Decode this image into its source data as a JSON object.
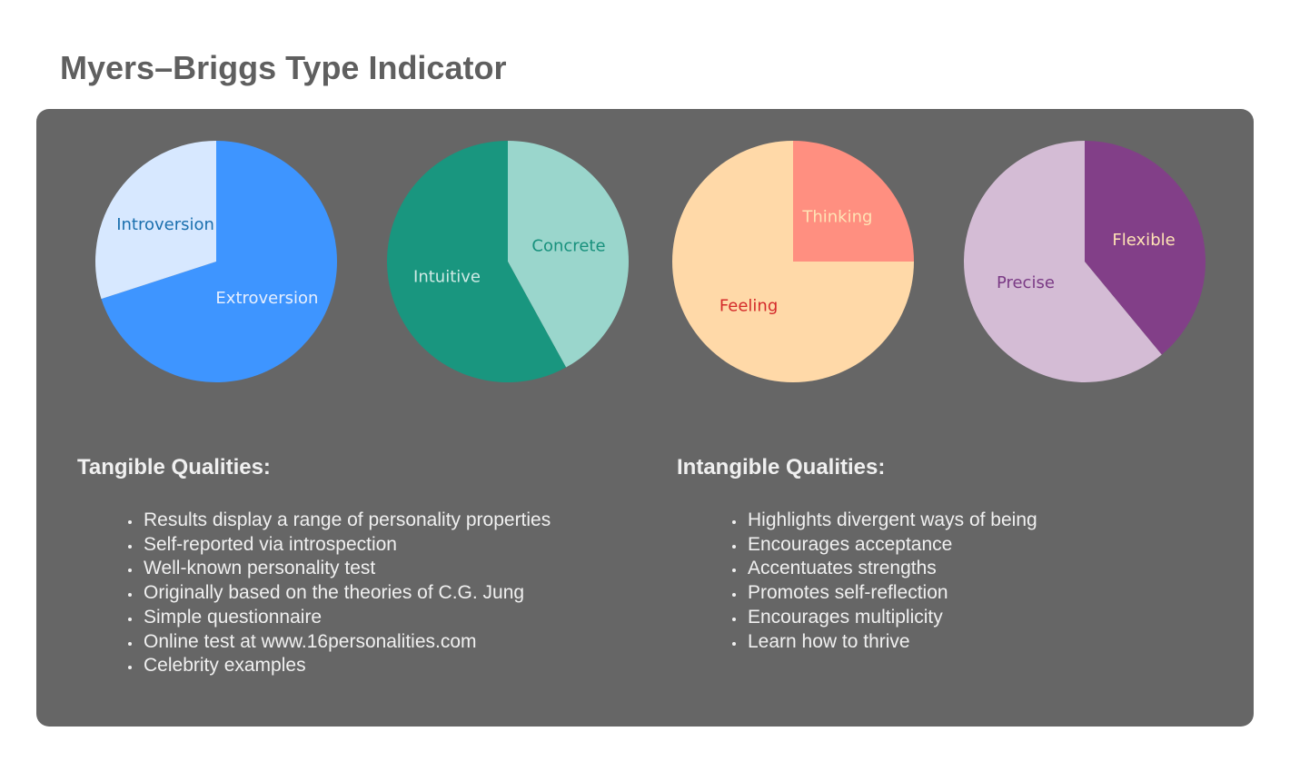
{
  "title": "Myers–Briggs Type Indicator",
  "chart_data": [
    {
      "type": "pie",
      "slices": [
        {
          "label": "Extroversion",
          "value": 70,
          "color": "#3e95ff",
          "label_color": "#e6efff"
        },
        {
          "label": "Introversion",
          "value": 30,
          "color": "#d7e8ff",
          "label_color": "#1a6fae"
        }
      ]
    },
    {
      "type": "pie",
      "slices": [
        {
          "label": "Concrete",
          "value": 42,
          "color": "#9ad6cc",
          "label_color": "#18917d"
        },
        {
          "label": "Intuitive",
          "value": 58,
          "color": "#19967f",
          "label_color": "#cfeae5"
        }
      ]
    },
    {
      "type": "pie",
      "slices": [
        {
          "label": "Thinking",
          "value": 25,
          "color": "#ff8f80",
          "label_color": "#ffe3b5"
        },
        {
          "label": "Feeling",
          "value": 75,
          "color": "#ffd9a8",
          "label_color": "#d42a2a"
        }
      ]
    },
    {
      "type": "pie",
      "slices": [
        {
          "label": "Flexible",
          "value": 39,
          "color": "#823f88",
          "label_color": "#ffe3b5"
        },
        {
          "label": "Precise",
          "value": 61,
          "color": "#d4bcd5",
          "label_color": "#7a3a85"
        }
      ]
    }
  ],
  "tangible": {
    "heading": "Tangible Qualities:",
    "items": [
      "Results display a range of personality properties",
      "Self-reported via introspection",
      "Well-known personality test",
      "Originally based on the theories of C.G. Jung",
      "Simple questionnaire",
      "Online test at www.16personalities.com",
      "Celebrity examples"
    ]
  },
  "intangible": {
    "heading": "Intangible Qualities:",
    "items": [
      "Highlights divergent ways of being",
      "Encourages acceptance",
      "Accentuates strengths",
      "Promotes self-reflection",
      "Encourages multiplicity",
      "Learn how to thrive"
    ]
  }
}
